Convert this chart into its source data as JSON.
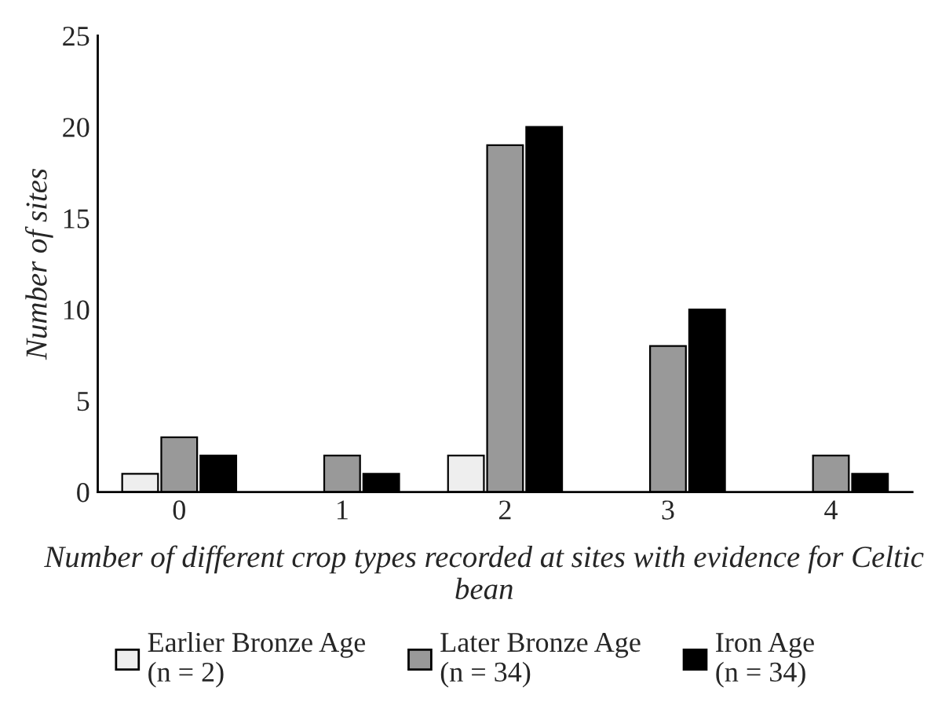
{
  "chart_data": {
    "type": "bar",
    "xlabel": "Number of different crop types recorded at sites with evidence for Celtic bean",
    "ylabel": "Number of sites",
    "categories": [
      "0",
      "1",
      "2",
      "3",
      "4"
    ],
    "series": [
      {
        "name": "Earlier Bronze Age\n(n = 2)",
        "color": "#eeeeee",
        "values": [
          1,
          0,
          2,
          0,
          0
        ]
      },
      {
        "name": "Later Bronze Age\n(n = 34)",
        "color": "#999999",
        "values": [
          3,
          2,
          19,
          8,
          2
        ]
      },
      {
        "name": "Iron Age\n(n = 34)",
        "color": "#000000",
        "values": [
          2,
          1,
          20,
          10,
          1
        ]
      }
    ],
    "ylim": [
      0,
      25
    ],
    "yticks": [
      0,
      5,
      10,
      15,
      20,
      25
    ],
    "grid": false,
    "legend": "bottom"
  }
}
